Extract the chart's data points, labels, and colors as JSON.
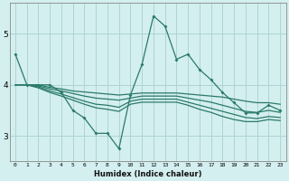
{
  "xlabel": "Humidex (Indice chaleur)",
  "bg_color": "#d4efef",
  "grid_color": "#aed4d4",
  "line_color": "#2a7a6a",
  "x_values": [
    0,
    1,
    2,
    3,
    4,
    5,
    6,
    7,
    8,
    9,
    10,
    11,
    12,
    13,
    14,
    15,
    16,
    17,
    18,
    19,
    20,
    21,
    22,
    23
  ],
  "series1": [
    4.6,
    4.0,
    4.0,
    4.0,
    3.85,
    3.5,
    3.35,
    3.05,
    3.05,
    2.75,
    3.8,
    4.4,
    5.35,
    5.15,
    4.5,
    4.6,
    4.3,
    4.1,
    3.85,
    3.65,
    3.45,
    3.45,
    3.6,
    3.5
  ],
  "series2": [
    4.0,
    4.0,
    4.0,
    3.95,
    3.92,
    3.88,
    3.86,
    3.84,
    3.82,
    3.8,
    3.82,
    3.84,
    3.84,
    3.84,
    3.84,
    3.82,
    3.8,
    3.78,
    3.76,
    3.72,
    3.68,
    3.65,
    3.65,
    3.62
  ],
  "series3": [
    4.0,
    4.0,
    3.98,
    3.92,
    3.88,
    3.83,
    3.78,
    3.74,
    3.72,
    3.7,
    3.74,
    3.78,
    3.78,
    3.78,
    3.78,
    3.74,
    3.7,
    3.66,
    3.6,
    3.54,
    3.48,
    3.46,
    3.5,
    3.46
  ],
  "series4": [
    4.0,
    4.0,
    3.96,
    3.88,
    3.82,
    3.75,
    3.68,
    3.62,
    3.6,
    3.56,
    3.68,
    3.72,
    3.72,
    3.72,
    3.72,
    3.66,
    3.6,
    3.54,
    3.48,
    3.42,
    3.36,
    3.34,
    3.38,
    3.36
  ],
  "series5": [
    4.0,
    4.0,
    3.94,
    3.85,
    3.78,
    3.7,
    3.62,
    3.55,
    3.52,
    3.48,
    3.62,
    3.66,
    3.66,
    3.66,
    3.66,
    3.6,
    3.52,
    3.46,
    3.38,
    3.32,
    3.28,
    3.28,
    3.32,
    3.3
  ],
  "ylim": [
    2.5,
    5.6
  ],
  "xlim": [
    -0.5,
    23.5
  ],
  "yticks": [
    3,
    4,
    5
  ],
  "xticks": [
    0,
    1,
    2,
    3,
    4,
    5,
    6,
    7,
    8,
    9,
    10,
    11,
    12,
    13,
    14,
    15,
    16,
    17,
    18,
    19,
    20,
    21,
    22,
    23
  ]
}
